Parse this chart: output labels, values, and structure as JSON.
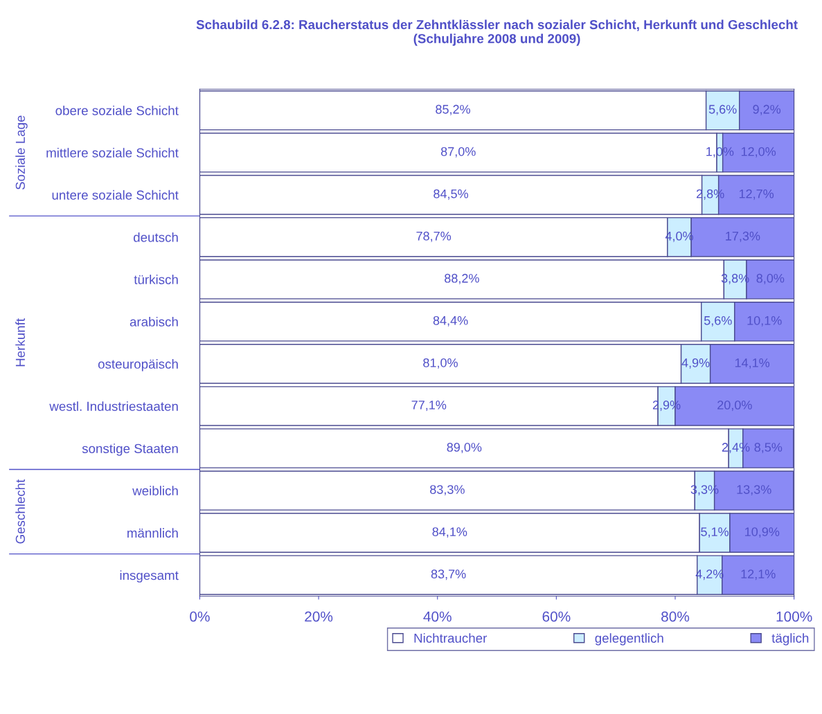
{
  "chart_data": {
    "type": "bar",
    "orientation": "horizontal",
    "stacked": true,
    "title": "Schaubild 6.2.8: Raucherstatus der Zehntklässler nach sozialer Schicht, Herkunft und Geschlecht (Schuljahre 2008 und 2009)",
    "categories": [
      "obere soziale Schicht",
      "mittlere soziale Schicht",
      "untere soziale Schicht",
      "deutsch",
      "türkisch",
      "arabisch",
      "osteuropäisch",
      "westl. Industriestaaten",
      "sonstige Staaten",
      "weiblich",
      "männlich",
      "insgesamt"
    ],
    "series": [
      {
        "name": "Nichtraucher",
        "color": "#ffffff",
        "values": [
          85.2,
          87.0,
          84.5,
          78.7,
          88.2,
          84.4,
          81.0,
          77.1,
          89.0,
          83.3,
          84.1,
          83.7
        ],
        "value_labels": [
          "85,2%",
          "87,0%",
          "84,5%",
          "78,7%",
          "88,2%",
          "84,4%",
          "81,0%",
          "77,1%",
          "89,0%",
          "83,3%",
          "84,1%",
          "83,7%"
        ]
      },
      {
        "name": "gelegentlich",
        "color": "#cceeff",
        "values": [
          5.6,
          1.0,
          2.8,
          4.0,
          3.8,
          5.6,
          4.9,
          2.9,
          2.4,
          3.3,
          5.1,
          4.2
        ],
        "value_labels": [
          "5,6%",
          "1,0%",
          "2,8%",
          "4,0%",
          "3,8%",
          "5,6%",
          "4,9%",
          "2,9%",
          "2,4%",
          "3,3%",
          "5,1%",
          "4,2%"
        ]
      },
      {
        "name": "täglich",
        "color": "#8a8af5",
        "values": [
          9.2,
          12.0,
          12.7,
          17.3,
          8.0,
          10.1,
          14.1,
          20.0,
          8.5,
          13.3,
          10.9,
          12.1
        ],
        "value_labels": [
          "9,2%",
          "12,0%",
          "12,7%",
          "17,3%",
          "8,0%",
          "10,1%",
          "14,1%",
          "20,0%",
          "8,5%",
          "13,3%",
          "10,9%",
          "12,1%"
        ]
      }
    ],
    "xlim": [
      0,
      100
    ],
    "xticks": [
      {
        "value": 0,
        "label": "0%"
      },
      {
        "value": 20,
        "label": "20%"
      },
      {
        "value": 40,
        "label": "40%"
      },
      {
        "value": 60,
        "label": "60%"
      },
      {
        "value": 80,
        "label": "80%"
      },
      {
        "value": 100,
        "label": "100%"
      }
    ],
    "annotations": [
      "Soziale Lage",
      "Herkunft",
      "Geschlecht"
    ],
    "legend": "bottom",
    "grid": false
  }
}
